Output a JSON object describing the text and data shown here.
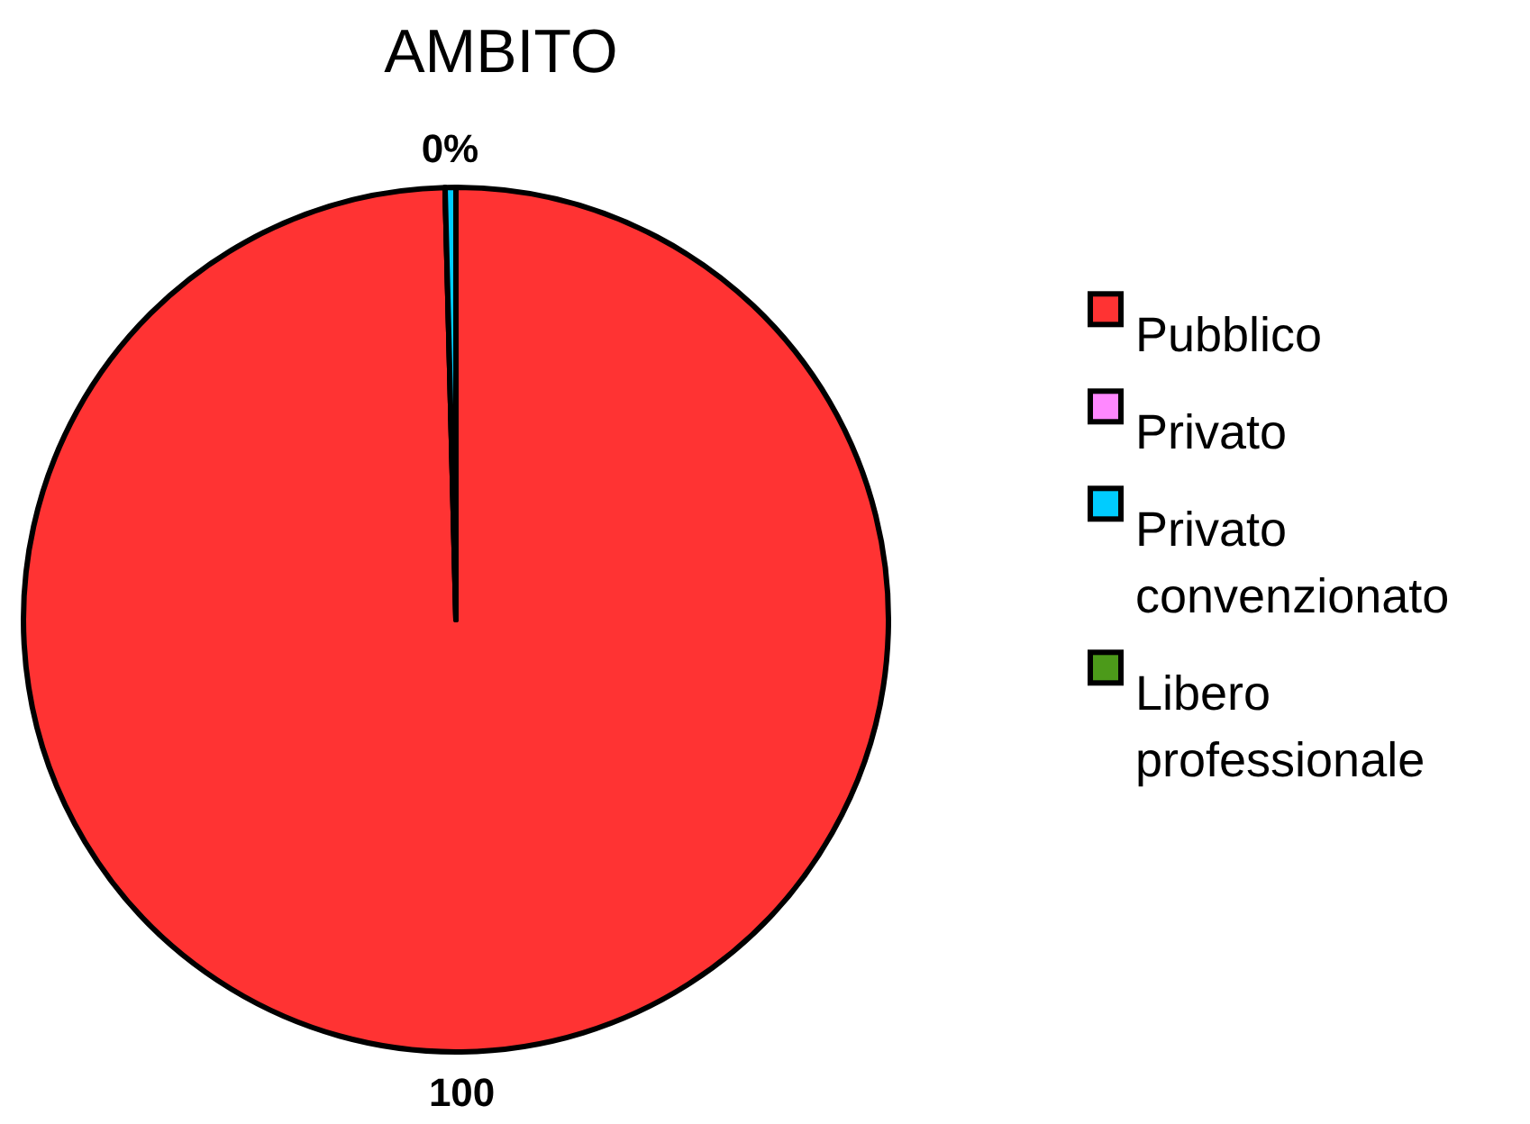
{
  "chart_data": {
    "type": "pie",
    "title": "AMBITO",
    "categories": [
      "Pubblico",
      "Privato",
      "Privato convenzionato",
      "Libero professionale"
    ],
    "values": [
      99.6,
      0,
      0.4,
      0
    ],
    "colors": [
      "#ff3333",
      "#ff88ff",
      "#00ccff",
      "#4c9a1a"
    ],
    "value_labels": [
      "100",
      null,
      "0%",
      null
    ],
    "legend": "right"
  }
}
